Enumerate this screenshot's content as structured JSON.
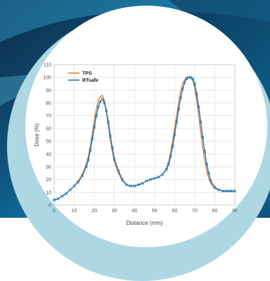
{
  "chart_data": {
    "type": "line",
    "xlabel": "Distance (mm)",
    "ylabel": "Dose (%)",
    "xlim": [
      0,
      90
    ],
    "ylim": [
      0,
      110
    ],
    "x_ticks": [
      "0",
      "10",
      "20",
      "30",
      "40",
      "50",
      "60",
      "70",
      "80",
      "90"
    ],
    "y_ticks": [
      "0",
      "10",
      "20",
      "30",
      "40",
      "50",
      "60",
      "70",
      "80",
      "90",
      "100",
      "110"
    ],
    "grid": true,
    "legend_position": "top-left",
    "x": [
      0,
      2,
      4,
      6,
      8,
      10,
      12,
      14,
      16,
      17,
      18,
      19,
      20,
      21,
      22,
      23,
      24,
      25,
      26,
      27,
      28,
      29,
      30,
      32,
      34,
      36,
      38,
      40,
      42,
      44,
      46,
      48,
      50,
      52,
      54,
      56,
      57,
      58,
      59,
      60,
      61,
      62,
      63,
      64,
      65,
      66,
      67,
      68,
      69,
      70,
      71,
      72,
      73,
      74,
      75,
      76,
      77,
      78,
      80,
      82,
      84,
      86,
      88,
      90
    ],
    "series": [
      {
        "name": "TPS",
        "color": "#ef7d22",
        "marker": "none",
        "values": [
          4,
          5,
          7,
          9,
          12,
          15,
          19,
          24,
          32,
          38,
          46,
          56,
          66,
          75,
          82,
          85,
          86,
          82,
          73,
          62,
          51,
          42,
          34,
          25,
          19,
          16,
          15,
          15,
          16,
          17,
          19,
          20,
          21,
          22,
          24,
          29,
          34,
          41,
          50,
          60,
          70,
          80,
          89,
          95,
          98,
          100,
          100,
          100,
          98,
          92,
          82,
          70,
          57,
          45,
          35,
          27,
          21,
          17,
          13,
          12,
          11,
          11,
          11,
          11
        ]
      },
      {
        "name": "RTsafe",
        "color": "#1f77b4",
        "marker": "x",
        "values": [
          4,
          5,
          7,
          9,
          12,
          15,
          18,
          23,
          30,
          35,
          43,
          52,
          61,
          70,
          77,
          81,
          83,
          80,
          74,
          65,
          54,
          45,
          36,
          27,
          20,
          16,
          15,
          15,
          16,
          17,
          19,
          20,
          21,
          22,
          24,
          28,
          32,
          38,
          46,
          55,
          65,
          75,
          84,
          91,
          96,
          99,
          100,
          100,
          99,
          95,
          87,
          77,
          65,
          53,
          42,
          32,
          25,
          19,
          14,
          12,
          11,
          11,
          11,
          11
        ]
      }
    ]
  }
}
